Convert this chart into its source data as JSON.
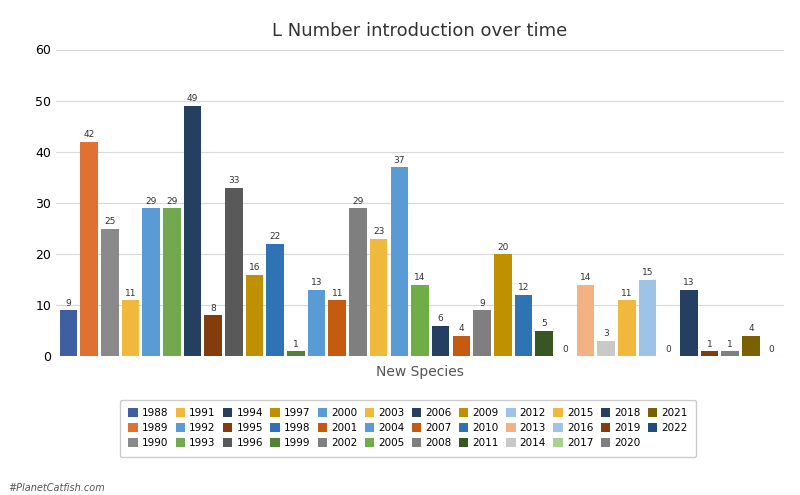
{
  "title": "L Number introduction over time",
  "xlabel": "New Species",
  "ylabel": "",
  "ylim": [
    0,
    60
  ],
  "yticks": [
    0,
    10,
    20,
    30,
    40,
    50,
    60
  ],
  "years": [
    "1988",
    "1989",
    "1990",
    "1991",
    "1992",
    "1993",
    "1994",
    "1995",
    "1996",
    "1997",
    "1998",
    "1999",
    "2000",
    "2001",
    "2002",
    "2003",
    "2004",
    "2005",
    "2006",
    "2007",
    "2008",
    "2009",
    "2010",
    "2011",
    "2012",
    "2013",
    "2014",
    "2015",
    "2016",
    "2017",
    "2018",
    "2019",
    "2020",
    "2021",
    "2022"
  ],
  "values": [
    9,
    42,
    25,
    11,
    29,
    29,
    49,
    8,
    33,
    16,
    22,
    1,
    13,
    11,
    29,
    23,
    37,
    14,
    6,
    4,
    9,
    20,
    12,
    5,
    0,
    14,
    3,
    11,
    15,
    0,
    13,
    1,
    1,
    4,
    0
  ],
  "colors": [
    "#3f5fa0",
    "#e07132",
    "#8a8a8a",
    "#f0b83c",
    "#5b9bd5",
    "#71a850",
    "#243f60",
    "#833c0b",
    "#595959",
    "#bf9000",
    "#2e74b5",
    "#538135",
    "#5b9bd5",
    "#c55a11",
    "#7f7f7f",
    "#f0b83c",
    "#5b9bd5",
    "#70ad47",
    "#243f60",
    "#c55a11",
    "#7f7f7f",
    "#bf9000",
    "#2e74b5",
    "#375623",
    "#9dc3e6",
    "#f4b183",
    "#c9c9c9",
    "#f0b83c",
    "#9dc3e6",
    "#a9d18e",
    "#243f60",
    "#833c0b",
    "#7f7f7f",
    "#7a6000",
    "#1f4e79"
  ],
  "legend_years": [
    "1988",
    "1989",
    "1990",
    "1991",
    "1992",
    "1993",
    "1994",
    "1995",
    "1996",
    "1997",
    "1998",
    "1999",
    "2000",
    "2001",
    "2002",
    "2003",
    "2004",
    "2005",
    "2006",
    "2007",
    "2008",
    "2009",
    "2010",
    "2011",
    "2012",
    "2013",
    "2014",
    "2015",
    "2016",
    "2017",
    "2018",
    "2019",
    "2020",
    "2021",
    "2022"
  ],
  "legend_colors": [
    "#3f5fa0",
    "#e07132",
    "#8a8a8a",
    "#f0b83c",
    "#5b9bd5",
    "#71a850",
    "#243f60",
    "#833c0b",
    "#595959",
    "#bf9000",
    "#2e74b5",
    "#538135",
    "#5b9bd5",
    "#c55a11",
    "#7f7f7f",
    "#f0b83c",
    "#5b9bd5",
    "#70ad47",
    "#243f60",
    "#c55a11",
    "#7f7f7f",
    "#bf9000",
    "#2e74b5",
    "#375623",
    "#9dc3e6",
    "#f4b183",
    "#c9c9c9",
    "#f0b83c",
    "#9dc3e6",
    "#a9d18e",
    "#243f60",
    "#833c0b",
    "#7f7f7f",
    "#7a6000",
    "#1f4e79"
  ],
  "watermark": "#PlanetCatfish.com",
  "bg_color": "#ffffff",
  "grid_color": "#d9d9d9"
}
